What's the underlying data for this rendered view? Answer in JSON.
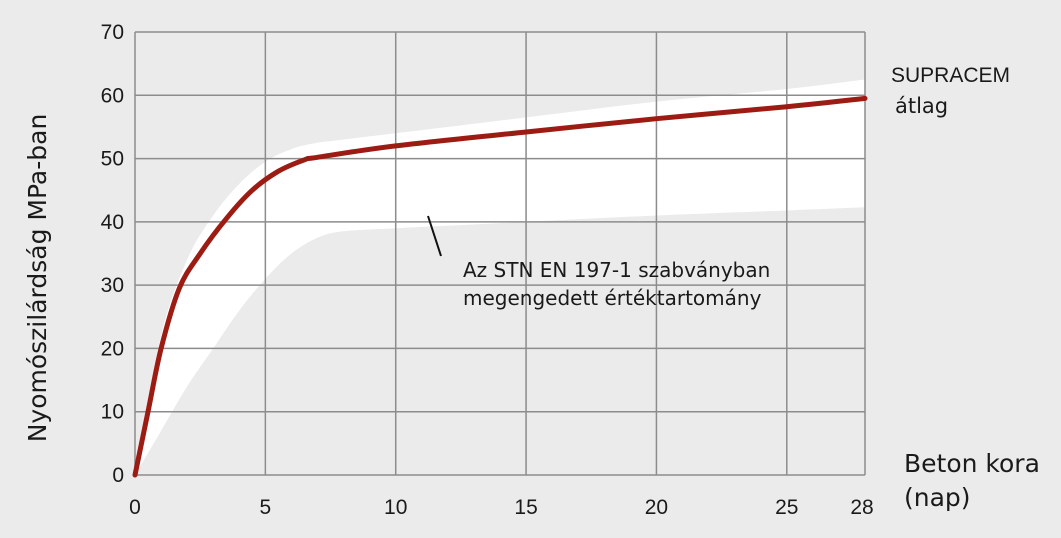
{
  "chart_data": {
    "type": "line",
    "title": "",
    "xlabel": "Beton kora (nap)",
    "xlabel_lines": [
      "Beton kora",
      "(nap)"
    ],
    "ylabel": "Nyomószilárdság MPa-ban",
    "xlim": [
      0,
      28
    ],
    "ylim": [
      0,
      70
    ],
    "x_ticks": [
      0,
      5,
      10,
      15,
      20,
      25,
      28
    ],
    "y_ticks": [
      0,
      10,
      20,
      30,
      40,
      50,
      60,
      70
    ],
    "x_tick_labels": [
      "0",
      "5",
      "10",
      "15",
      "20",
      "25",
      "28"
    ],
    "y_tick_labels": [
      "0",
      "10",
      "20",
      "30",
      "40",
      "50",
      "60",
      "70"
    ],
    "grid": true,
    "colors": {
      "background": "#ebebeb",
      "band": "#ffffff",
      "series": "#9c1c14",
      "grid": "#8c8c8c"
    },
    "series": [
      {
        "name": "SUPRACEM átlag",
        "label_lines": [
          "SUPRACEM",
          "átlag"
        ],
        "x": [
          0,
          0.5,
          1,
          1.7,
          2.5,
          3.5,
          4.5,
          5.5,
          6.5,
          7,
          10,
          15,
          20,
          25,
          28
        ],
        "y": [
          0,
          10,
          20,
          29.5,
          35,
          40.5,
          45,
          48,
          49.8,
          50.2,
          52,
          54.2,
          56.3,
          58.2,
          59.5
        ]
      }
    ],
    "band": {
      "name": "Az STN EN 197-1 szabványban megengedett értéktartomány",
      "label_lines": [
        "Az STN EN 197-1 szabványban",
        "megengedett értéktartomány"
      ],
      "x": [
        0,
        1,
        2,
        3,
        4,
        5,
        6,
        7,
        8,
        10,
        15,
        20,
        25,
        28
      ],
      "upper": [
        0,
        22,
        34,
        41,
        46,
        49.5,
        51.5,
        52.5,
        53,
        54,
        56.5,
        59,
        61,
        62.5
      ],
      "lower": [
        0,
        7,
        14,
        20,
        26,
        31,
        35,
        37.5,
        38.5,
        39,
        40,
        41,
        41.8,
        42.3
      ]
    }
  }
}
